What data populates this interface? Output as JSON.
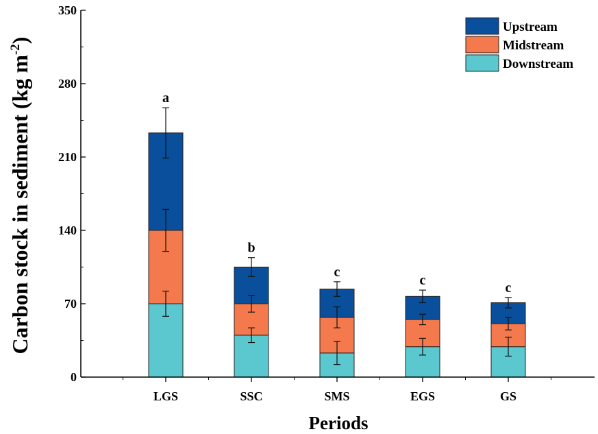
{
  "chart_data": {
    "type": "bar",
    "stacked": true,
    "title": "",
    "xlabel": "Periods",
    "ylabel": "Carbon stock  in sediment (kg m",
    "ylabel_superscript": "-2",
    "ylabel_close": ")",
    "ylim": [
      0,
      350
    ],
    "yticks": [
      0,
      70,
      140,
      210,
      280,
      350
    ],
    "categories": [
      "LGS",
      "SSC",
      "SMS",
      "EGS",
      "GS"
    ],
    "series": [
      {
        "name": "Downstream",
        "color": "#5bc8cf",
        "values": [
          70,
          40,
          23,
          29,
          29
        ],
        "errors": [
          12,
          7,
          11,
          8,
          9
        ]
      },
      {
        "name": "Midstream",
        "color": "#f47a4d",
        "values": [
          70,
          30,
          34,
          26,
          22
        ],
        "errors": [
          20,
          8,
          10,
          5,
          6
        ]
      },
      {
        "name": "Upstream",
        "color": "#0a4f9c",
        "values": [
          93,
          35,
          27,
          22,
          20
        ],
        "errors": [
          24,
          9,
          7,
          6,
          5
        ]
      }
    ],
    "significance_letters": [
      "a",
      "b",
      "c",
      "c",
      "c"
    ],
    "legend": {
      "placement": "top-right",
      "order": [
        "Upstream",
        "Midstream",
        "Downstream"
      ]
    }
  }
}
